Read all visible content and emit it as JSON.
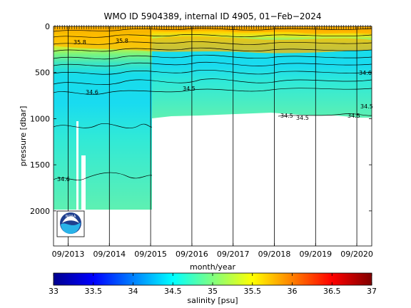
{
  "chart_data": {
    "type": "heatmap",
    "title": "WMO ID 5904389, internal ID 4905, 01−Feb−2024",
    "xlabel": "month/year",
    "ylabel": "pressure [dbar]",
    "x_tick_labels": [
      "09/2013",
      "09/2014",
      "09/2015",
      "09/2016",
      "09/2017",
      "09/2018",
      "09/2019",
      "09/2020"
    ],
    "y_ticks": [
      0,
      500,
      1000,
      1500,
      2000
    ],
    "ylim": [
      2380,
      0
    ],
    "y_reversed": true,
    "colorbar": {
      "label": "salinity [psu]",
      "range": [
        33,
        37
      ],
      "ticks": [
        "33",
        "33.5",
        "34",
        "34.5",
        "35",
        "35.5",
        "36",
        "36.5",
        "37"
      ],
      "colormap": "jet"
    },
    "profile_depth_max": [
      {
        "period": "09/2013–05/2015",
        "max_pressure": 2000
      },
      {
        "period": "05/2015–end",
        "max_pressure": 1000
      }
    ],
    "salinity_layers": [
      {
        "pressure": 0,
        "salinity": 35.4
      },
      {
        "pressure": 150,
        "salinity": 35.6
      },
      {
        "pressure": 350,
        "salinity": 35.2
      },
      {
        "pressure": 500,
        "salinity": 34.9
      },
      {
        "pressure": 650,
        "salinity": 34.6
      },
      {
        "pressure": 1000,
        "salinity": 34.5
      },
      {
        "pressure": 2000,
        "salinity": 34.75
      }
    ],
    "contour_labels": [
      "35.8",
      "35.8",
      "34.5",
      "34.6",
      "34.5",
      "34.5",
      "34.5",
      "34.6",
      "34.6",
      "34.5"
    ],
    "grid": false,
    "legend": "none"
  },
  "logo": {
    "text": "NOAA"
  }
}
